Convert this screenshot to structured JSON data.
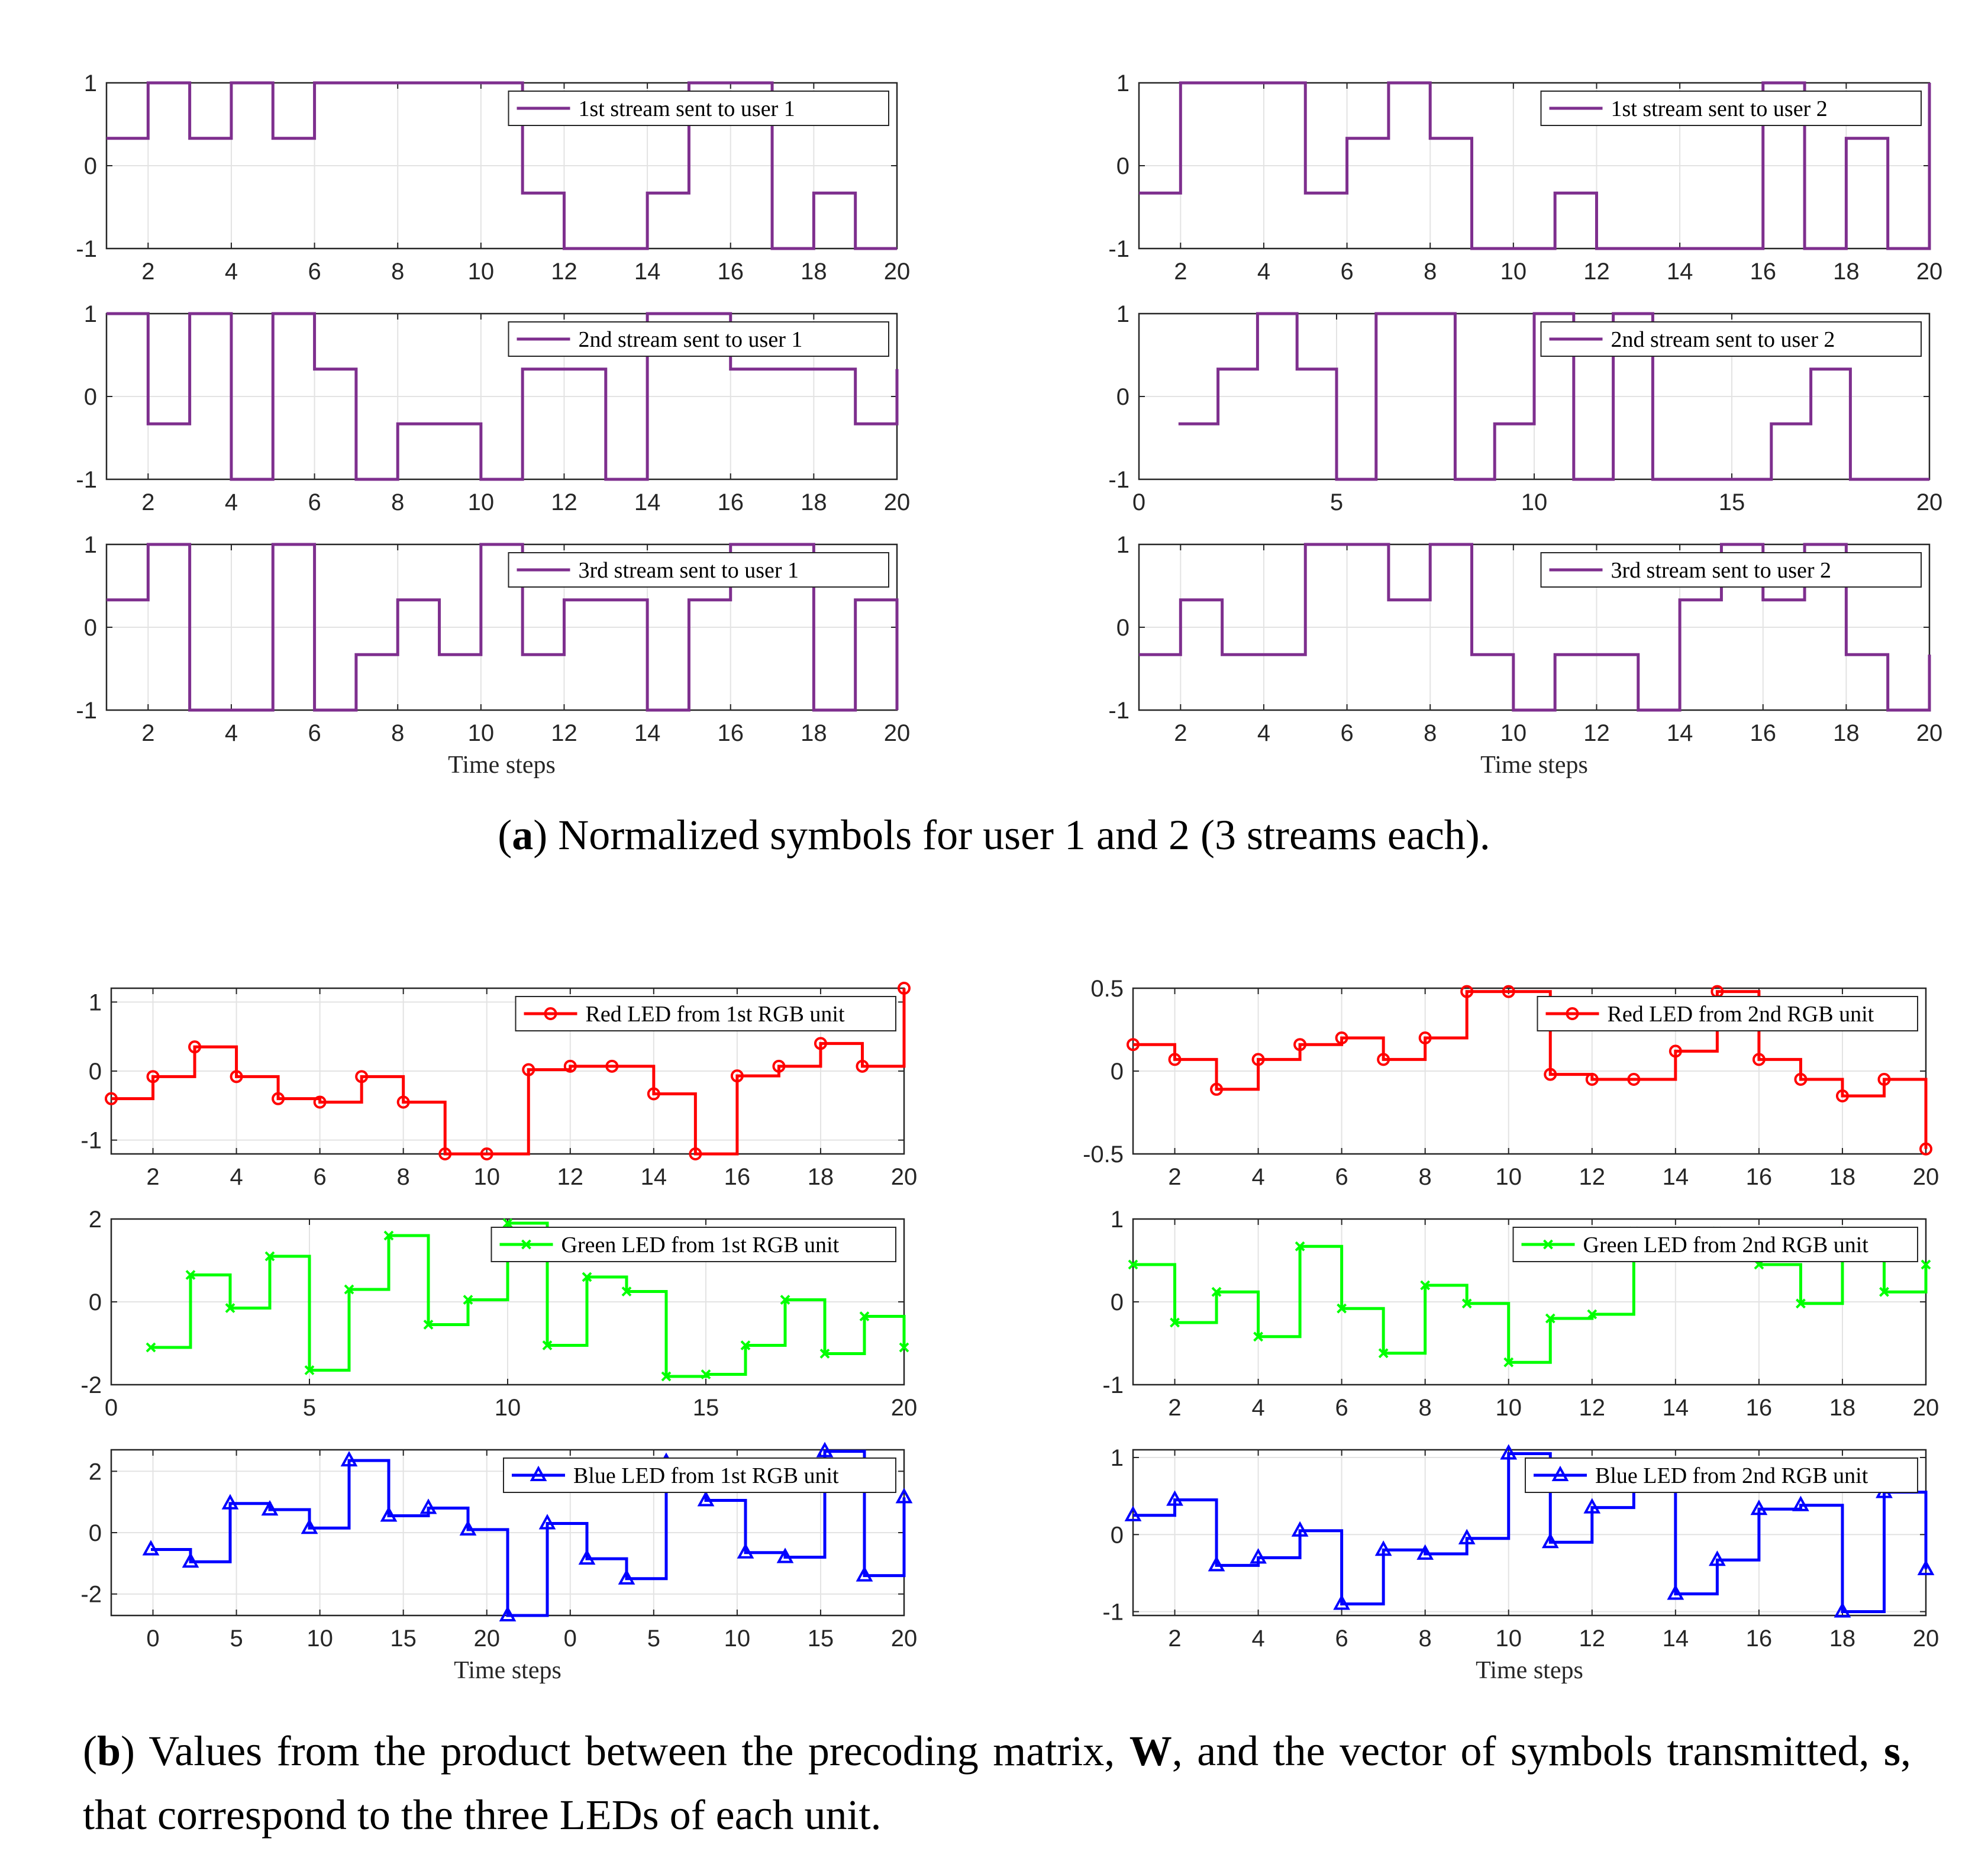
{
  "captions": {
    "a": {
      "label": "a",
      "text": "Normalized symbols for user 1 and 2 (3 streams each)."
    },
    "b": {
      "label": "b",
      "pre": "Values from the product between the precoding matrix, ",
      "bold1": "W",
      "mid": ", and the vector of symbols transmitted, ",
      "bold2": "s",
      "post": ", that correspond to the three LEDs of each unit."
    }
  },
  "chart_data": [
    {
      "id": "a-u1-s1",
      "type": "line",
      "step": true,
      "color": "#7E2F8E",
      "legend": "1st stream sent to user 1",
      "x": [
        1,
        2,
        3,
        4,
        5,
        6,
        7,
        8,
        9,
        10,
        11,
        12,
        13,
        14,
        15,
        16,
        17,
        18,
        19,
        20
      ],
      "y": [
        0.33,
        1,
        0.33,
        1,
        0.33,
        1,
        1,
        1,
        1,
        1,
        -0.33,
        -1,
        -1,
        -0.33,
        1,
        1,
        -1,
        -0.33,
        -1,
        -1
      ],
      "xlim": [
        1,
        20
      ],
      "ylim": [
        -1,
        1
      ],
      "xticks": [
        2,
        4,
        6,
        8,
        10,
        12,
        14,
        16,
        18,
        20
      ],
      "yticks": [
        -1,
        0,
        1
      ],
      "grid": true,
      "legend_pos": "top-right",
      "xlabel": ""
    },
    {
      "id": "a-u1-s2",
      "type": "line",
      "step": true,
      "color": "#7E2F8E",
      "legend": "2nd stream sent to user 1",
      "x": [
        1,
        2,
        3,
        4,
        5,
        6,
        7,
        8,
        9,
        10,
        11,
        12,
        13,
        14,
        15,
        16,
        17,
        18,
        19,
        20
      ],
      "y": [
        1,
        -0.33,
        1,
        -1,
        1,
        0.33,
        -1,
        -0.33,
        -0.33,
        -1,
        0.33,
        0.33,
        -1,
        1,
        1,
        0.33,
        0.33,
        0.33,
        -0.33,
        0.33
      ],
      "xlim": [
        1,
        20
      ],
      "ylim": [
        -1,
        1
      ],
      "xticks": [
        2,
        4,
        6,
        8,
        10,
        12,
        14,
        16,
        18,
        20
      ],
      "yticks": [
        -1,
        0,
        1
      ],
      "grid": true,
      "legend_pos": "top-right",
      "xlabel": ""
    },
    {
      "id": "a-u1-s3",
      "type": "line",
      "step": true,
      "color": "#7E2F8E",
      "legend": "3rd stream sent to user 1",
      "x": [
        1,
        2,
        3,
        4,
        5,
        6,
        7,
        8,
        9,
        10,
        11,
        12,
        13,
        14,
        15,
        16,
        17,
        18,
        19,
        20
      ],
      "y": [
        0.33,
        1,
        -1,
        -1,
        1,
        -1,
        -0.33,
        0.33,
        -0.33,
        1,
        -0.33,
        0.33,
        0.33,
        -1,
        0.33,
        1,
        1,
        -1,
        0.33,
        -1
      ],
      "xlim": [
        1,
        20
      ],
      "ylim": [
        -1,
        1
      ],
      "xticks": [
        2,
        4,
        6,
        8,
        10,
        12,
        14,
        16,
        18,
        20
      ],
      "yticks": [
        -1,
        0,
        1
      ],
      "grid": true,
      "legend_pos": "top-right",
      "xlabel": "Time steps"
    },
    {
      "id": "a-u2-s1",
      "type": "line",
      "step": true,
      "color": "#7E2F8E",
      "legend": "1st stream sent to user 2",
      "x": [
        1,
        2,
        3,
        4,
        5,
        6,
        7,
        8,
        9,
        10,
        11,
        12,
        13,
        14,
        15,
        16,
        17,
        18,
        19,
        20
      ],
      "y": [
        -0.33,
        1,
        1,
        1,
        -0.33,
        0.33,
        1,
        0.33,
        -1,
        -1,
        -0.33,
        -1,
        -1,
        -1,
        -1,
        1,
        -1,
        0.33,
        -1,
        1
      ],
      "xlim": [
        1,
        20
      ],
      "ylim": [
        -1,
        1
      ],
      "xticks": [
        2,
        4,
        6,
        8,
        10,
        12,
        14,
        16,
        18,
        20
      ],
      "yticks": [
        -1,
        0,
        1
      ],
      "grid": true,
      "legend_pos": "top-right",
      "xlabel": ""
    },
    {
      "id": "a-u2-s2",
      "type": "line",
      "step": true,
      "color": "#7E2F8E",
      "legend": "2nd stream sent to user 2",
      "x": [
        1,
        2,
        3,
        4,
        5,
        6,
        7,
        8,
        9,
        10,
        11,
        12,
        13,
        14,
        15,
        16,
        17,
        18,
        19,
        20
      ],
      "y": [
        -0.33,
        0.33,
        1,
        0.33,
        -1,
        1,
        1,
        -1,
        -0.33,
        1,
        -1,
        1,
        -1,
        -1,
        -1,
        -0.33,
        0.33,
        -1,
        -1,
        -1
      ],
      "xlim": [
        0,
        20
      ],
      "ylim": [
        -1,
        1
      ],
      "xticks": [
        0,
        5,
        10,
        15,
        20
      ],
      "yticks": [
        -1,
        0,
        1
      ],
      "grid": true,
      "legend_pos": "top-right",
      "xlabel": ""
    },
    {
      "id": "a-u2-s3",
      "type": "line",
      "step": true,
      "color": "#7E2F8E",
      "legend": "3rd stream sent to user 2",
      "x": [
        1,
        2,
        3,
        4,
        5,
        6,
        7,
        8,
        9,
        10,
        11,
        12,
        13,
        14,
        15,
        16,
        17,
        18,
        19,
        20
      ],
      "y": [
        -0.33,
        0.33,
        -0.33,
        -0.33,
        1,
        1,
        0.33,
        1,
        -0.33,
        -1,
        -0.33,
        -0.33,
        -1,
        0.33,
        1,
        0.33,
        1,
        -0.33,
        -1,
        -0.33
      ],
      "xlim": [
        1,
        20
      ],
      "ylim": [
        -1,
        1
      ],
      "xticks": [
        2,
        4,
        6,
        8,
        10,
        12,
        14,
        16,
        18,
        20
      ],
      "yticks": [
        -1,
        0,
        1
      ],
      "grid": true,
      "legend_pos": "top-right",
      "xlabel": "Time steps"
    },
    {
      "id": "b-u1-red",
      "type": "line",
      "step": true,
      "color": "#FF0000",
      "marker": "circle",
      "legend": "Red LED from 1st RGB unit",
      "x": [
        1,
        2,
        3,
        4,
        5,
        6,
        7,
        8,
        9,
        10,
        11,
        12,
        13,
        14,
        15,
        16,
        17,
        18,
        19,
        20
      ],
      "y": [
        -0.4,
        -0.08,
        0.35,
        -0.08,
        -0.4,
        -0.45,
        -0.08,
        -0.45,
        -1.2,
        -1.2,
        0.02,
        0.07,
        0.07,
        -0.33,
        -1.2,
        -0.07,
        0.07,
        0.4,
        0.07,
        1.2
      ],
      "xlim": [
        1,
        20
      ],
      "ylim": [
        -1.2,
        1.2
      ],
      "xticks": [
        2,
        4,
        6,
        8,
        10,
        12,
        14,
        16,
        18,
        20
      ],
      "yticks": [
        -1,
        0,
        1
      ],
      "grid": true,
      "legend_pos": "top-right",
      "xlabel": ""
    },
    {
      "id": "b-u1-green",
      "type": "line",
      "step": true,
      "color": "#00FF00",
      "marker": "x",
      "legend": "Green LED from 1st RGB unit",
      "x": [
        1,
        2,
        3,
        4,
        5,
        6,
        7,
        8,
        9,
        10,
        11,
        12,
        13,
        14,
        15,
        16,
        17,
        18,
        19,
        20
      ],
      "y": [
        -1.1,
        0.65,
        -0.15,
        1.1,
        -1.65,
        0.3,
        1.6,
        -0.55,
        0.05,
        1.9,
        -1.05,
        0.6,
        0.25,
        -1.8,
        -1.75,
        -1.05,
        0.05,
        -1.25,
        -0.35,
        -1.1
      ],
      "xlim": [
        0,
        20
      ],
      "ylim": [
        -2,
        2
      ],
      "xticks": [
        0,
        5,
        10,
        15,
        20
      ],
      "yticks": [
        -2,
        0,
        2
      ],
      "grid": true,
      "legend_pos": "top-right",
      "xlabel": ""
    },
    {
      "id": "b-u1-blue",
      "type": "line",
      "step": true,
      "color": "#0000FF",
      "marker": "triangle",
      "legend": "Blue LED from 1st RGB unit",
      "x": [
        1,
        2,
        3,
        4,
        5,
        6,
        7,
        8,
        9,
        10,
        11,
        12,
        13,
        14,
        15,
        16,
        17,
        18,
        19,
        20
      ],
      "y": [
        -0.55,
        -0.95,
        0.95,
        0.75,
        0.15,
        2.35,
        0.55,
        0.8,
        0.1,
        -2.7,
        0.3,
        -0.85,
        -1.5,
        2.3,
        1.05,
        -0.65,
        -0.8,
        2.65,
        -1.4,
        1.15
      ],
      "xlim": [
        0,
        20
      ],
      "ylim": [
        -2.7,
        2.7
      ],
      "xtick_labels": [
        "0",
        "5",
        "10",
        "15",
        "20",
        "0",
        "5",
        "10",
        "15",
        "20"
      ],
      "yticks": [
        -2,
        0,
        2
      ],
      "grid": true,
      "legend_pos": "top-right",
      "xlabel": "Time steps"
    },
    {
      "id": "b-u2-red",
      "type": "line",
      "step": true,
      "color": "#FF0000",
      "marker": "circle",
      "legend": "Red LED from 2nd RGB unit",
      "x": [
        1,
        2,
        3,
        4,
        5,
        6,
        7,
        8,
        9,
        10,
        11,
        12,
        13,
        14,
        15,
        16,
        17,
        18,
        19,
        20
      ],
      "y": [
        0.16,
        0.07,
        -0.11,
        0.07,
        0.16,
        0.2,
        0.07,
        0.2,
        0.48,
        0.48,
        -0.02,
        -0.05,
        -0.05,
        0.12,
        0.48,
        0.07,
        -0.05,
        -0.15,
        -0.05,
        -0.47
      ],
      "xlim": [
        1,
        20
      ],
      "ylim": [
        -0.5,
        0.5
      ],
      "xticks": [
        2,
        4,
        6,
        8,
        10,
        12,
        14,
        16,
        18,
        20
      ],
      "yticks": [
        -0.5,
        0,
        0.5
      ],
      "grid": true,
      "legend_pos": "top-right",
      "xlabel": ""
    },
    {
      "id": "b-u2-green",
      "type": "line",
      "step": true,
      "color": "#00FF00",
      "marker": "x",
      "legend": "Green LED from 2nd RGB unit",
      "x": [
        1,
        2,
        3,
        4,
        5,
        6,
        7,
        8,
        9,
        10,
        11,
        12,
        13,
        14,
        15,
        16,
        17,
        18,
        19,
        20
      ],
      "y": [
        0.45,
        -0.25,
        0.12,
        -0.42,
        0.67,
        -0.08,
        -0.62,
        0.2,
        -0.02,
        -0.73,
        -0.2,
        -0.15,
        0.85,
        0.85,
        0.85,
        0.45,
        -0.02,
        0.85,
        0.12,
        0.45
      ],
      "xlim": [
        1,
        20
      ],
      "ylim": [
        -1,
        1
      ],
      "xticks": [
        2,
        4,
        6,
        8,
        10,
        12,
        14,
        16,
        18,
        20
      ],
      "yticks": [
        -1,
        0,
        1
      ],
      "grid": true,
      "legend_pos": "top-right",
      "xlabel": ""
    },
    {
      "id": "b-u2-blue",
      "type": "line",
      "step": true,
      "color": "#0000FF",
      "marker": "triangle",
      "legend": "Blue LED from 2nd RGB unit",
      "x": [
        1,
        2,
        3,
        4,
        5,
        6,
        7,
        8,
        9,
        10,
        11,
        12,
        13,
        14,
        15,
        16,
        17,
        18,
        19,
        20
      ],
      "y": [
        0.25,
        0.45,
        -0.4,
        -0.3,
        0.05,
        -0.9,
        -0.2,
        -0.25,
        -0.05,
        1.05,
        -0.1,
        0.35,
        0.8,
        -0.77,
        -0.33,
        0.33,
        0.38,
        -1,
        0.55,
        -0.45
      ],
      "xlim": [
        1,
        20
      ],
      "ylim": [
        -1.05,
        1.1
      ],
      "xticks": [
        2,
        4,
        6,
        8,
        10,
        12,
        14,
        16,
        18,
        20
      ],
      "yticks": [
        -1,
        0,
        1
      ],
      "grid": true,
      "legend_pos": "top-right",
      "xlabel": "Time steps"
    }
  ]
}
